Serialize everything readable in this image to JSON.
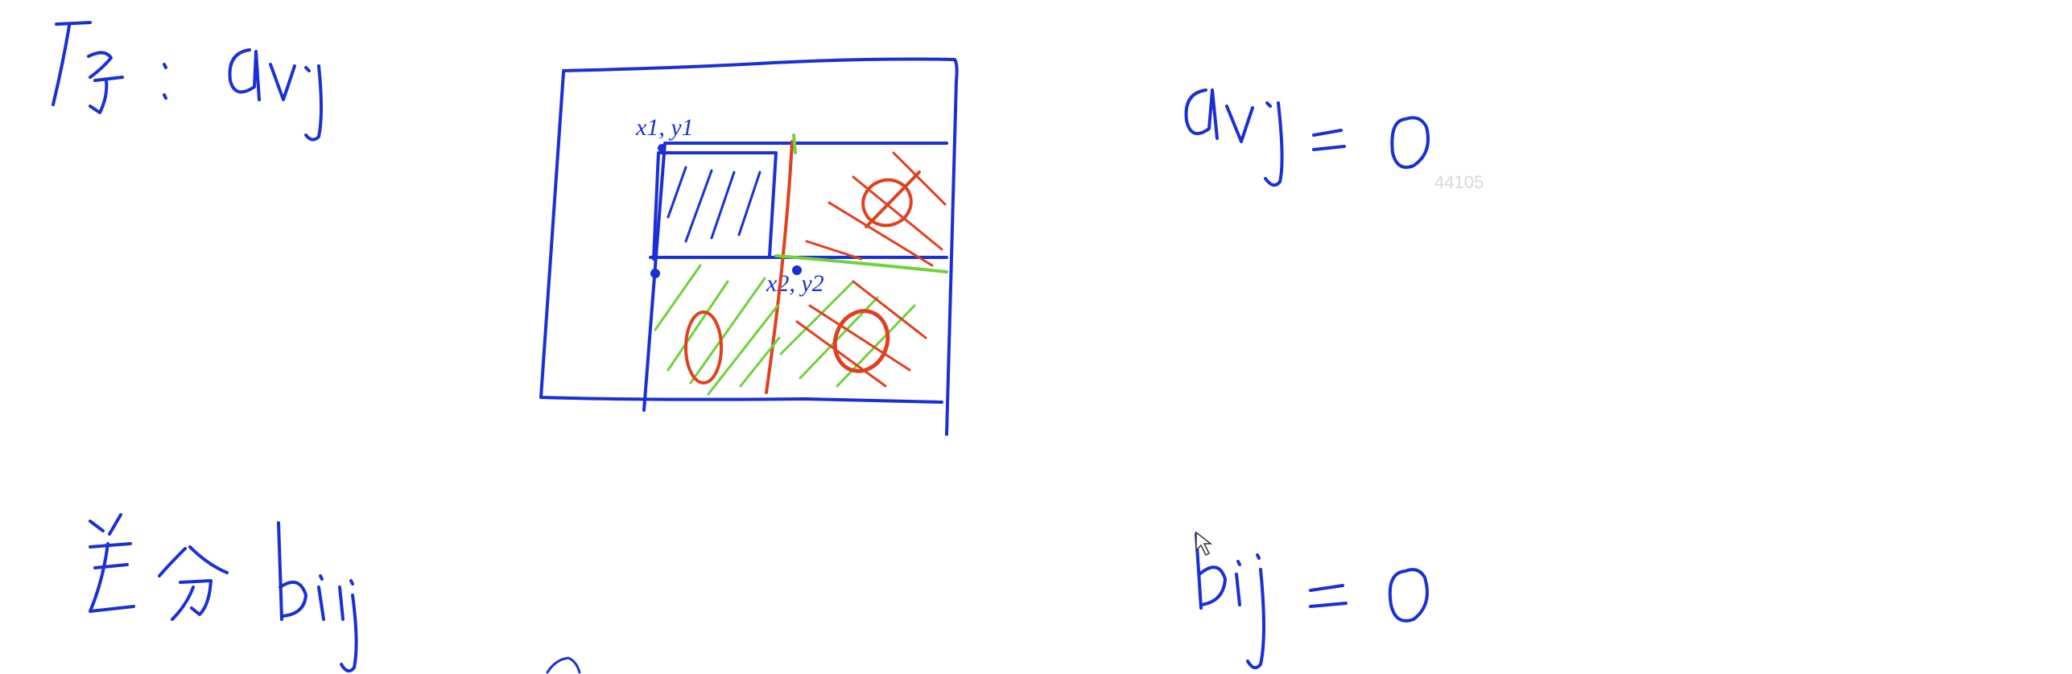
{
  "notes": {
    "top_left": "原: aij",
    "top_right": "aij = 0",
    "bottom_left": "差分 bij",
    "bottom_right": "bij = 0"
  },
  "diagram": {
    "corner1_label": "x1, y1",
    "corner2_label": "x2, y2",
    "region_marks": [
      "0",
      "0",
      "0"
    ]
  },
  "watermark": "44105",
  "colors": {
    "blue_ink": "#1a2fd6",
    "red_ink": "#e0401f",
    "green_ink": "#6fd23a"
  },
  "icons": [
    "mouse-cursor-icon"
  ]
}
